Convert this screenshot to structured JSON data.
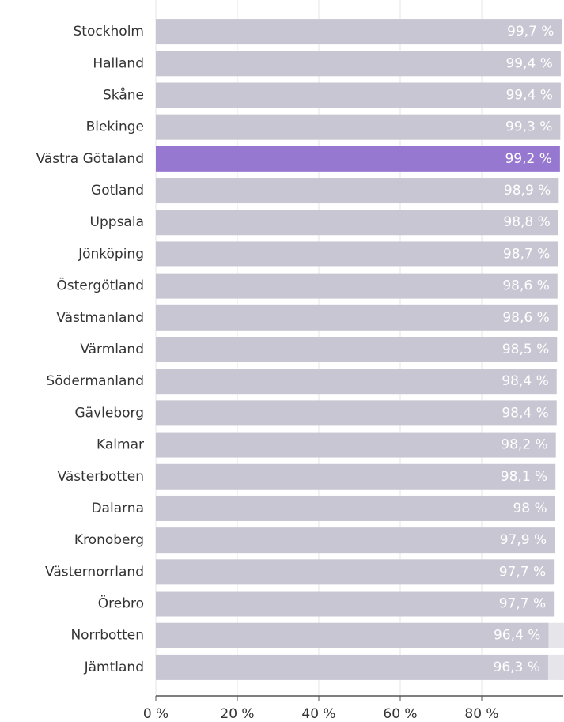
{
  "chart_data": {
    "type": "hbar",
    "categories": [
      "Stockholm",
      "Halland",
      "Skåne",
      "Blekinge",
      "Västra Götaland",
      "Gotland",
      "Uppsala",
      "Jönköping",
      "Östergötland",
      "Västmanland",
      "Värmland",
      "Södermanland",
      "Gävleborg",
      "Kalmar",
      "Västerbotten",
      "Dalarna",
      "Kronoberg",
      "Västernorrland",
      "Örebro",
      "Norrbotten",
      "Jämtland"
    ],
    "series": [
      {
        "colors": [
          "#c8c6d2",
          "#c8c6d2",
          "#c8c6d2",
          "#c8c6d2",
          "#9778d0",
          "#c8c6d2",
          "#c8c6d2",
          "#c8c6d2",
          "#c8c6d2",
          "#c8c6d2",
          "#c8c6d2",
          "#c8c6d2",
          "#c8c6d2",
          "#c8c6d2",
          "#c8c6d2",
          "#c8c6d2",
          "#c8c6d2",
          "#c8c6d2",
          "#c8c6d2",
          "#c8c6d2",
          "#c8c6d2"
        ],
        "values": [
          99.7,
          99.4,
          99.4,
          99.3,
          99.2,
          98.9,
          98.8,
          98.7,
          98.6,
          98.6,
          98.5,
          98.4,
          98.4,
          98.2,
          98.1,
          98,
          97.9,
          97.7,
          97.7,
          96.4,
          96.3
        ],
        "value_labels": [
          "99,7 %",
          "99,4 %",
          "99,4 %",
          "99,3 %",
          "99,2 %",
          "98,9 %",
          "98,8 %",
          "98,7 %",
          "98,6 %",
          "98,6 %",
          "98,5 %",
          "98,4 %",
          "98,4 %",
          "98,2 %",
          "98,1 %",
          "98 %",
          "97,9 %",
          "97,7 %",
          "97,7 %",
          "96,4 %",
          "96,3 %"
        ]
      },
      {
        "color": "#e6e5ea",
        "values": [
          null,
          null,
          null,
          null,
          null,
          null,
          null,
          null,
          null,
          null,
          null,
          null,
          null,
          null,
          null,
          null,
          null,
          null,
          null,
          1.9,
          2.0
        ]
      }
    ],
    "xlim": [
      0,
      100
    ],
    "xticks": [
      {
        "value": 0,
        "label": "0 %"
      },
      {
        "value": 20,
        "label": "20 %"
      },
      {
        "value": 40,
        "label": "40 %"
      },
      {
        "value": 60,
        "label": "60 %"
      },
      {
        "value": 80,
        "label": "80 %"
      }
    ],
    "grid": true
  }
}
